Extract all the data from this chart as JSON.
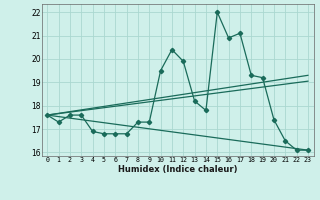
{
  "xlabel": "Humidex (Indice chaleur)",
  "ylabel": "",
  "bg_color": "#cff0ea",
  "grid_color": "#aad8d0",
  "line_color": "#1a6b5a",
  "xlim": [
    -0.5,
    23.5
  ],
  "ylim": [
    15.85,
    22.35
  ],
  "yticks": [
    16,
    17,
    18,
    19,
    20,
    21,
    22
  ],
  "xticks": [
    0,
    1,
    2,
    3,
    4,
    5,
    6,
    7,
    8,
    9,
    10,
    11,
    12,
    13,
    14,
    15,
    16,
    17,
    18,
    19,
    20,
    21,
    22,
    23
  ],
  "main_y": [
    17.6,
    17.3,
    17.6,
    17.6,
    16.9,
    16.8,
    16.8,
    16.8,
    17.3,
    17.3,
    19.5,
    20.4,
    19.9,
    18.2,
    17.8,
    22.0,
    20.9,
    21.1,
    19.3,
    19.2,
    17.4,
    16.5,
    16.1,
    16.1
  ],
  "trend1_x": [
    0,
    23
  ],
  "trend1_y": [
    17.6,
    19.3
  ],
  "trend2_x": [
    0,
    23
  ],
  "trend2_y": [
    17.6,
    19.05
  ],
  "trend3_x": [
    0,
    23
  ],
  "trend3_y": [
    17.6,
    16.1
  ]
}
